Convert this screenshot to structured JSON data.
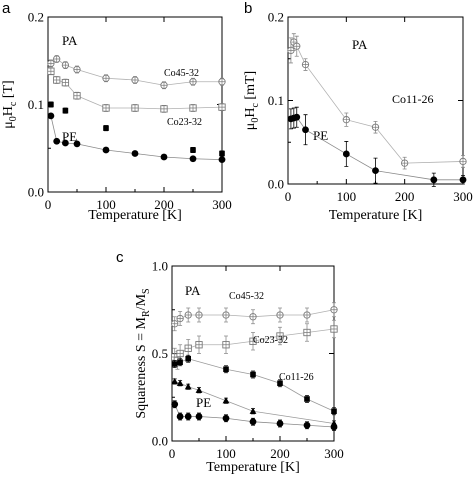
{
  "chart_data": [
    {
      "panel_label": "a",
      "type": "scatter",
      "xlabel": "Temperature  [K]",
      "ylabel_main": "μ",
      "ylabel_sub1": "0",
      "ylabel_mid": "H",
      "ylabel_sub2": "c",
      "ylabel_tail": " [T]",
      "xlim": [
        0,
        300
      ],
      "ylim": [
        0,
        0.2
      ],
      "xticks": [
        0,
        100,
        200,
        300
      ],
      "yticks": [
        0.0,
        0.1,
        0.2
      ],
      "ytick_labels": [
        "0.0",
        "0.1",
        "0.2"
      ],
      "annotations": [
        "PA",
        "PE"
      ],
      "series": [
        {
          "name": "Co45-32",
          "marker": "circle-plus",
          "connected": true,
          "x": [
            5,
            15,
            30,
            50,
            100,
            150,
            200,
            250,
            300
          ],
          "y": [
            0.147,
            0.152,
            0.145,
            0.14,
            0.13,
            0.128,
            0.122,
            0.126,
            0.126
          ],
          "err": [
            0.004,
            0.004,
            0.004,
            0.004,
            0.004,
            0.004,
            0.004,
            0.004,
            0.004
          ]
        },
        {
          "name": "Co23-32",
          "marker": "square-plus",
          "connected": true,
          "x": [
            5,
            15,
            30,
            50,
            100,
            150,
            200,
            250,
            300
          ],
          "y": [
            0.138,
            0.128,
            0.125,
            0.11,
            0.096,
            0.096,
            0.095,
            0.096,
            0.097
          ],
          "err": [
            0.004,
            0.004,
            0.004,
            0.004,
            0.004,
            0.004,
            0.004,
            0.004,
            0.004
          ]
        },
        {
          "name": "",
          "marker": "filled-square",
          "connected": false,
          "x": [
            5,
            30,
            100,
            250,
            300
          ],
          "y": [
            0.1,
            0.093,
            0.073,
            0.048,
            0.044
          ],
          "err": [
            0.003,
            0.003,
            0.003,
            0.003,
            0.003
          ]
        },
        {
          "name": "",
          "marker": "filled-circle",
          "connected": true,
          "x": [
            5,
            15,
            30,
            50,
            100,
            150,
            200,
            250,
            300
          ],
          "y": [
            0.087,
            0.058,
            0.056,
            0.055,
            0.048,
            0.044,
            0.04,
            0.038,
            0.037
          ],
          "err": [
            0.002,
            0.002,
            0.002,
            0.002,
            0.002,
            0.002,
            0.002,
            0.002,
            0.002
          ]
        }
      ]
    },
    {
      "panel_label": "b",
      "type": "scatter",
      "xlabel": "Temperature  [K]",
      "ylabel_main": "μ",
      "ylabel_sub1": "0",
      "ylabel_mid": "H",
      "ylabel_sub2": "c",
      "ylabel_tail": " [mT]",
      "xlim": [
        0,
        300
      ],
      "ylim": [
        0,
        0.2
      ],
      "xticks": [
        0,
        100,
        200,
        300
      ],
      "yticks": [
        0.0,
        0.1,
        0.2
      ],
      "ytick_labels": [
        "0.0",
        "0.1",
        "0.2"
      ],
      "annotations": [
        "PA",
        "PE",
        "Co11-26"
      ],
      "series": [
        {
          "name": "",
          "marker": "circle-plus",
          "connected": true,
          "x": [
            5,
            10,
            15,
            30,
            100,
            150,
            200,
            300
          ],
          "y": [
            0.16,
            0.17,
            0.165,
            0.143,
            0.077,
            0.068,
            0.025,
            0.027
          ],
          "err": [
            0.015,
            0.01,
            0.012,
            0.007,
            0.008,
            0.007,
            0.007,
            0.007
          ]
        },
        {
          "name": "",
          "marker": "filled-circle",
          "connected": true,
          "x": [
            5,
            10,
            15,
            30,
            100,
            150,
            250,
            300
          ],
          "y": [
            0.078,
            0.079,
            0.08,
            0.065,
            0.036,
            0.016,
            0.005,
            0.005
          ],
          "err": [
            0.012,
            0.012,
            0.012,
            0.018,
            0.015,
            0.015,
            0.008,
            0.005
          ]
        }
      ]
    },
    {
      "panel_label": "c",
      "type": "scatter",
      "xlabel": "Temperature  [K]",
      "ylabel_main": "Squareness S = M",
      "ylabel_sub1": "R",
      "ylabel_mid": "/M",
      "ylabel_sub2": "S",
      "ylabel_tail": "",
      "xlim": [
        0,
        300
      ],
      "ylim": [
        0,
        1.0
      ],
      "xticks": [
        0,
        100,
        200,
        300
      ],
      "yticks": [
        0.0,
        0.5,
        1.0
      ],
      "ytick_labels": [
        "0.0",
        "0.5",
        "1.0"
      ],
      "annotations": [
        "PA",
        "PE"
      ],
      "series": [
        {
          "name": "Co45-32",
          "marker": "circle-plus",
          "connected": true,
          "x": [
            5,
            15,
            30,
            50,
            100,
            150,
            200,
            250,
            300
          ],
          "y": [
            0.67,
            0.7,
            0.72,
            0.72,
            0.72,
            0.71,
            0.72,
            0.72,
            0.75
          ],
          "err": [
            0.04,
            0.04,
            0.04,
            0.04,
            0.04,
            0.04,
            0.04,
            0.04,
            0.04
          ]
        },
        {
          "name": "Co23-32",
          "marker": "square-plus",
          "connected": true,
          "x": [
            5,
            10,
            15,
            30,
            50,
            100,
            150,
            200,
            250,
            300
          ],
          "y": [
            0.48,
            0.46,
            0.5,
            0.53,
            0.55,
            0.55,
            0.57,
            0.6,
            0.62,
            0.64
          ],
          "err": [
            0.05,
            0.05,
            0.05,
            0.05,
            0.05,
            0.05,
            0.05,
            0.05,
            0.05,
            0.05
          ]
        },
        {
          "name": "Co11-26",
          "marker": "filled-square",
          "connected": true,
          "x": [
            5,
            15,
            30,
            100,
            150,
            200,
            250,
            300
          ],
          "y": [
            0.44,
            0.45,
            0.47,
            0.41,
            0.38,
            0.33,
            0.24,
            0.17
          ],
          "err": [
            0.02,
            0.02,
            0.02,
            0.02,
            0.02,
            0.02,
            0.02,
            0.02
          ]
        },
        {
          "name": "",
          "marker": "filled-triangle",
          "connected": true,
          "x": [
            5,
            15,
            30,
            50,
            100,
            150,
            300
          ],
          "y": [
            0.34,
            0.33,
            0.31,
            0.29,
            0.23,
            0.17,
            0.1
          ],
          "err": [
            0.015,
            0.015,
            0.015,
            0.015,
            0.015,
            0.015,
            0.015
          ]
        },
        {
          "name": "",
          "marker": "filled-circle",
          "connected": true,
          "x": [
            5,
            15,
            30,
            50,
            100,
            150,
            200,
            250,
            300
          ],
          "y": [
            0.21,
            0.14,
            0.14,
            0.14,
            0.13,
            0.11,
            0.1,
            0.09,
            0.08
          ],
          "err": [
            0.02,
            0.02,
            0.02,
            0.02,
            0.02,
            0.02,
            0.02,
            0.02,
            0.02
          ]
        }
      ]
    }
  ]
}
